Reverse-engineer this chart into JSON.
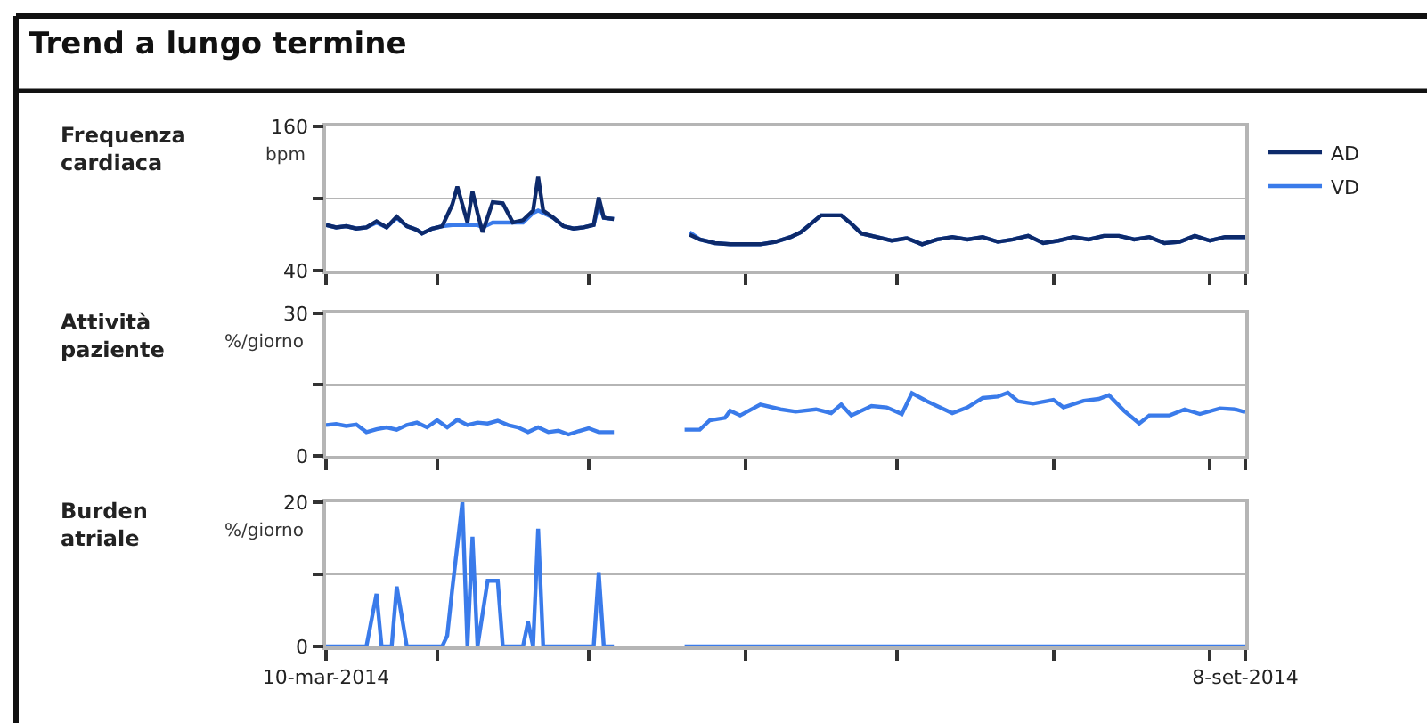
{
  "chart_data": [
    {
      "type": "line",
      "title": "Trend a lungo termine",
      "ylabel": "Frequenza cardiaca",
      "annotations": [
        "bpm"
      ],
      "x": [
        "2014-03-10",
        "2014-03-12",
        "2014-03-14",
        "2014-03-16",
        "2014-03-18",
        "2014-03-20",
        "2014-03-22",
        "2014-03-24",
        "2014-03-26",
        "2014-03-28",
        "2014-03-29",
        "2014-03-31",
        "2014-04-02",
        "2014-04-04",
        "2014-04-05",
        "2014-04-06",
        "2014-04-07",
        "2014-04-08",
        "2014-04-09",
        "2014-04-10",
        "2014-04-12",
        "2014-04-14",
        "2014-04-16",
        "2014-04-18",
        "2014-04-20",
        "2014-04-21",
        "2014-04-22",
        "2014-04-24",
        "2014-04-26",
        "2014-04-28",
        "2014-04-30",
        "2014-05-02",
        "2014-05-03",
        "2014-05-04",
        "2014-05-06",
        "2014-05-13",
        "2014-05-21",
        "2014-05-23",
        "2014-05-26",
        "2014-05-29",
        "2014-06-01",
        "2014-06-04",
        "2014-06-07",
        "2014-06-10",
        "2014-06-12",
        "2014-06-14",
        "2014-06-16",
        "2014-06-18",
        "2014-06-20",
        "2014-06-22",
        "2014-06-24",
        "2014-06-27",
        "2014-06-30",
        "2014-07-03",
        "2014-07-06",
        "2014-07-09",
        "2014-07-12",
        "2014-07-15",
        "2014-07-18",
        "2014-07-21",
        "2014-07-24",
        "2014-07-27",
        "2014-07-30",
        "2014-08-02",
        "2014-08-05",
        "2014-08-08",
        "2014-08-11",
        "2014-08-14",
        "2014-08-17",
        "2014-08-20",
        "2014-08-23",
        "2014-08-26",
        "2014-08-29",
        "2014-09-01",
        "2014-09-04",
        "2014-09-08"
      ],
      "series": [
        {
          "name": "AD",
          "color": "#0d2a6b",
          "values": [
            78,
            76,
            77,
            75,
            76,
            81,
            76,
            85,
            77,
            74,
            71,
            75,
            77,
            95,
            110,
            95,
            80,
            106,
            88,
            72,
            97,
            96,
            80,
            82,
            90,
            118,
            90,
            84,
            77,
            75,
            76,
            78,
            101,
            84,
            83,
            null,
            70,
            66,
            63,
            62,
            62,
            62,
            64,
            68,
            72,
            79,
            86,
            86,
            86,
            79,
            71,
            68,
            65,
            67,
            62,
            66,
            68,
            66,
            68,
            64,
            66,
            69,
            63,
            65,
            68,
            66,
            69,
            69,
            66,
            68,
            63,
            64,
            69,
            65,
            68,
            68
          ]
        },
        {
          "name": "VD",
          "color": "#3a7bea",
          "values": [
            78,
            76,
            77,
            75,
            76,
            80,
            76,
            84,
            77,
            74,
            71,
            75,
            77,
            78,
            78,
            78,
            78,
            78,
            78,
            76,
            80,
            80,
            80,
            80,
            88,
            90,
            88,
            84,
            77,
            75,
            76,
            78,
            95,
            84,
            83,
            null,
            72,
            66,
            63,
            62,
            62,
            62,
            64,
            68,
            72,
            79,
            86,
            86,
            86,
            79,
            71,
            68,
            65,
            67,
            62,
            66,
            68,
            66,
            68,
            64,
            66,
            69,
            63,
            65,
            68,
            66,
            69,
            69,
            66,
            68,
            63,
            64,
            69,
            65,
            68,
            68
          ]
        }
      ],
      "xlim": [
        "2014-03-10",
        "2014-09-08"
      ],
      "xticks": [
        {
          "value": "2014-03-10",
          "label": null
        },
        {
          "value": "2014-04-01",
          "label": null
        },
        {
          "value": "2014-05-01",
          "label": null
        },
        {
          "value": "2014-06-01",
          "label": null
        },
        {
          "value": "2014-07-01",
          "label": null
        },
        {
          "value": "2014-08-01",
          "label": null
        },
        {
          "value": "2014-09-01",
          "label": null
        },
        {
          "value": "2014-09-08",
          "label": null
        }
      ],
      "ylim": [
        40,
        160
      ],
      "yticks": [
        40,
        {
          "value": 100,
          "label": null
        },
        160
      ],
      "grid": "y",
      "legend": "top right",
      "tick_labels": "y",
      "line_style": "solid",
      "marker": "none"
    },
    {
      "type": "line",
      "ylabel": "Attività paziente",
      "annotations": [
        "%/giorno"
      ],
      "x": [
        "2014-03-10",
        "2014-03-12",
        "2014-03-14",
        "2014-03-16",
        "2014-03-18",
        "2014-03-20",
        "2014-03-22",
        "2014-03-24",
        "2014-03-26",
        "2014-03-28",
        "2014-03-30",
        "2014-04-01",
        "2014-04-03",
        "2014-04-05",
        "2014-04-07",
        "2014-04-09",
        "2014-04-11",
        "2014-04-13",
        "2014-04-15",
        "2014-04-17",
        "2014-04-19",
        "2014-04-21",
        "2014-04-23",
        "2014-04-25",
        "2014-04-27",
        "2014-04-29",
        "2014-05-01",
        "2014-05-03",
        "2014-05-06",
        "2014-05-13",
        "2014-05-20",
        "2014-05-23",
        "2014-05-25",
        "2014-05-28",
        "2014-05-29",
        "2014-05-31",
        "2014-06-04",
        "2014-06-08",
        "2014-06-11",
        "2014-06-15",
        "2014-06-18",
        "2014-06-20",
        "2014-06-22",
        "2014-06-26",
        "2014-06-29",
        "2014-07-02",
        "2014-07-04",
        "2014-07-07",
        "2014-07-10",
        "2014-07-12",
        "2014-07-15",
        "2014-07-18",
        "2014-07-21",
        "2014-07-23",
        "2014-07-25",
        "2014-07-28",
        "2014-08-01",
        "2014-08-03",
        "2014-08-07",
        "2014-08-10",
        "2014-08-12",
        "2014-08-15",
        "2014-08-18",
        "2014-08-20",
        "2014-08-24",
        "2014-08-27",
        "2014-08-30",
        "2014-09-03",
        "2014-09-06",
        "2014-09-08"
      ],
      "series": [
        {
          "color": "#3a7bea",
          "values": [
            6.5,
            6.7,
            6.3,
            6.6,
            5.0,
            5.6,
            6.0,
            5.5,
            6.5,
            7.0,
            6.0,
            7.5,
            6.0,
            7.6,
            6.5,
            7.0,
            6.8,
            7.4,
            6.5,
            6.0,
            5.0,
            6.0,
            5.0,
            5.3,
            4.5,
            5.2,
            5.8,
            5.0,
            5.0,
            null,
            5.5,
            5.5,
            7.5,
            8.0,
            9.5,
            8.5,
            10.8,
            9.8,
            9.3,
            9.8,
            9.0,
            10.8,
            8.5,
            10.5,
            10.2,
            8.8,
            13.2,
            11.5,
            10.0,
            9.0,
            10.2,
            12.2,
            12.5,
            13.3,
            11.5,
            11.0,
            11.8,
            10.2,
            11.6,
            12.0,
            12.8,
            9.5,
            6.8,
            8.5,
            8.5,
            9.8,
            8.8,
            10.0,
            9.8,
            9.2
          ]
        }
      ],
      "xlim": [
        "2014-03-10",
        "2014-09-08"
      ],
      "xticks": [
        {
          "value": "2014-03-10",
          "label": null
        },
        {
          "value": "2014-04-01",
          "label": null
        },
        {
          "value": "2014-05-01",
          "label": null
        },
        {
          "value": "2014-06-01",
          "label": null
        },
        {
          "value": "2014-07-01",
          "label": null
        },
        {
          "value": "2014-08-01",
          "label": null
        },
        {
          "value": "2014-09-01",
          "label": null
        },
        {
          "value": "2014-09-08",
          "label": null
        }
      ],
      "ylim": [
        0,
        30
      ],
      "yticks": [
        0,
        {
          "value": 15,
          "label": null
        },
        30
      ],
      "grid": "y",
      "tick_labels": "y",
      "line_style": "solid",
      "marker": "none"
    },
    {
      "type": "line",
      "ylabel": "Burden atriale",
      "annotations": [
        "%/giorno"
      ],
      "x": [
        "2014-03-10",
        "2014-03-18",
        "2014-03-20",
        "2014-03-21",
        "2014-03-23",
        "2014-03-24",
        "2014-03-26",
        "2014-04-02",
        "2014-04-03",
        "2014-04-04",
        "2014-04-06",
        "2014-04-07",
        "2014-04-08",
        "2014-04-09",
        "2014-04-11",
        "2014-04-13",
        "2014-04-14",
        "2014-04-18",
        "2014-04-19",
        "2014-04-20",
        "2014-04-21",
        "2014-04-22",
        "2014-05-02",
        "2014-05-03",
        "2014-05-04",
        "2014-05-06",
        "2014-05-13",
        "2014-05-20",
        "2014-06-01",
        "2014-06-15",
        "2014-07-01",
        "2014-07-15",
        "2014-08-01",
        "2014-08-15",
        "2014-09-01",
        "2014-09-08"
      ],
      "series": [
        {
          "color": "#3a7bea",
          "values": [
            0,
            0,
            7.3,
            0,
            0,
            8.3,
            0,
            0,
            1.5,
            8,
            20,
            0,
            15.2,
            0,
            9.1,
            9.1,
            0,
            0,
            3.4,
            0,
            16.3,
            0,
            0,
            10.3,
            0,
            0,
            null,
            0,
            0,
            0,
            0,
            0,
            0,
            0,
            0,
            0
          ]
        }
      ],
      "xlim": [
        "2014-03-10",
        "2014-09-08"
      ],
      "xticks": [
        {
          "value": "2014-03-10",
          "label": "10-mar-2014"
        },
        {
          "value": "2014-04-01",
          "label": null
        },
        {
          "value": "2014-05-01",
          "label": null
        },
        {
          "value": "2014-06-01",
          "label": null
        },
        {
          "value": "2014-07-01",
          "label": null
        },
        {
          "value": "2014-08-01",
          "label": null
        },
        {
          "value": "2014-09-01",
          "label": null
        },
        {
          "value": "2014-09-08",
          "label": "8-set-2014"
        }
      ],
      "ylim": [
        0,
        20
      ],
      "yticks": [
        0,
        {
          "value": 10,
          "label": null
        },
        20
      ],
      "grid": "y",
      "line_style": "solid",
      "marker": "none"
    }
  ]
}
